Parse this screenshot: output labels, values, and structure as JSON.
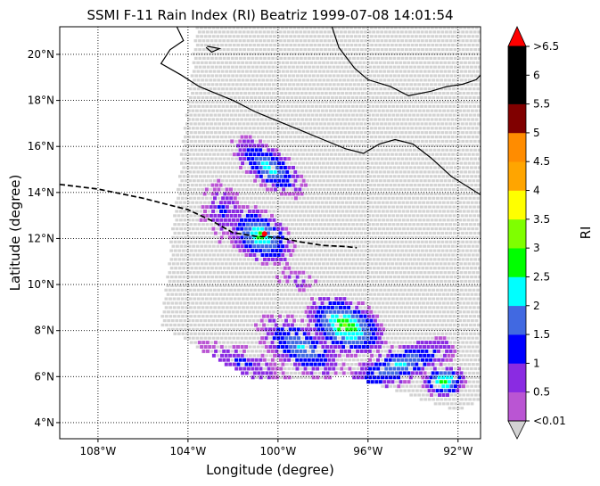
{
  "chart_data": {
    "type": "heatmap",
    "title": "SSMI F-11 Rain Index (RI) Beatriz 1999-07-08 14:01:54",
    "xlabel": "Longitude (degree)",
    "ylabel": "Latitude (degree)",
    "xlim": [
      -109.7,
      -91.0
    ],
    "ylim": [
      3.3,
      21.2
    ],
    "x_ticks": [
      {
        "value": -108,
        "label": "108°W"
      },
      {
        "value": -104,
        "label": "104°W"
      },
      {
        "value": -100,
        "label": "100°W"
      },
      {
        "value": -96,
        "label": "96°W"
      },
      {
        "value": -92,
        "label": "92°W"
      }
    ],
    "y_ticks": [
      {
        "value": 4,
        "label": "4°N"
      },
      {
        "value": 6,
        "label": "6°N"
      },
      {
        "value": 8,
        "label": "8°N"
      },
      {
        "value": 10,
        "label": "10°N"
      },
      {
        "value": 12,
        "label": "12°N"
      },
      {
        "value": 14,
        "label": "14°N"
      },
      {
        "value": 16,
        "label": "16°N"
      },
      {
        "value": 18,
        "label": "18°N"
      },
      {
        "value": 20,
        "label": "20°N"
      }
    ],
    "grid": true,
    "grid_style": "dotted",
    "swath_corners": [
      [
        -98.5,
        21.2
      ],
      [
        -91.0,
        21.2
      ],
      [
        -91.0,
        5.0
      ],
      [
        -92.0,
        4.5
      ],
      [
        -96.8,
        6.0
      ],
      [
        -101.0,
        5.8
      ],
      [
        -103.5,
        7.2
      ],
      [
        -105.2,
        8.2
      ],
      [
        -103.6,
        21.2
      ]
    ],
    "swath_color": "#d3d3d3",
    "track": {
      "style": "dashed",
      "color": "#000000",
      "points": [
        [
          -109.7,
          14.35
        ],
        [
          -108.0,
          14.15
        ],
        [
          -106.0,
          13.75
        ],
        [
          -104.0,
          13.25
        ],
        [
          -103.0,
          12.8
        ],
        [
          -102.0,
          12.25
        ],
        [
          -101.0,
          12.1
        ],
        [
          -100.0,
          12.05
        ],
        [
          -99.0,
          11.85
        ],
        [
          -98.0,
          11.7
        ],
        [
          -97.0,
          11.65
        ],
        [
          -96.5,
          11.6
        ]
      ]
    },
    "storm_center": {
      "lon": -100.6,
      "lat": 12.2,
      "color": "#ff0000"
    },
    "coastline": [
      [
        [
          -104.5,
          21.2
        ],
        [
          -104.2,
          20.6
        ],
        [
          -104.8,
          20.2
        ],
        [
          -105.2,
          19.6
        ],
        [
          -104.3,
          19.1
        ],
        [
          -103.5,
          18.6
        ],
        [
          -102.0,
          18.0
        ],
        [
          -101.0,
          17.5
        ],
        [
          -100.0,
          17.1
        ],
        [
          -99.0,
          16.7
        ],
        [
          -98.0,
          16.3
        ],
        [
          -97.0,
          15.9
        ],
        [
          -96.2,
          15.7
        ],
        [
          -95.5,
          16.1
        ],
        [
          -94.8,
          16.3
        ],
        [
          -94.0,
          16.1
        ],
        [
          -93.2,
          15.5
        ],
        [
          -92.3,
          14.7
        ],
        [
          -91.0,
          13.9
        ]
      ],
      [
        [
          -97.6,
          21.2
        ],
        [
          -97.3,
          20.3
        ],
        [
          -96.6,
          19.4
        ],
        [
          -96.0,
          18.9
        ],
        [
          -95.0,
          18.6
        ],
        [
          -94.2,
          18.2
        ],
        [
          -93.2,
          18.4
        ],
        [
          -92.5,
          18.6
        ],
        [
          -91.8,
          18.7
        ],
        [
          -91.2,
          18.9
        ],
        [
          -91.0,
          19.1
        ]
      ],
      [
        [
          -103.15,
          20.35
        ],
        [
          -102.6,
          20.25
        ],
        [
          -102.95,
          20.1
        ],
        [
          -103.2,
          20.3
        ]
      ]
    ],
    "colorbar": {
      "label": "RI",
      "tick_labels": [
        "<0.01",
        "0.5",
        "1",
        "1.5",
        "2",
        "2.5",
        "3",
        "3.5",
        "4",
        "4.5",
        "5",
        "5.5",
        "6",
        ">6.5"
      ],
      "colors": [
        "#ba55d3",
        "#8a2be2",
        "#0000ff",
        "#4169e1",
        "#00ffff",
        "#00ff00",
        "#7fff00",
        "#ffff00",
        "#ffa500",
        "#ff8c00",
        "#800000",
        "#000000",
        "#000000"
      ],
      "under_color": "#d3d3d3",
      "over_color": "#ff0000"
    },
    "rain_clusters": [
      {
        "lon": -100.4,
        "lat": 15.1,
        "rx": 1.6,
        "ry": 0.7,
        "rot": -35,
        "peak": 2.4
      },
      {
        "lon": -100.8,
        "lat": 12.1,
        "rx": 1.4,
        "ry": 0.9,
        "rot": -35,
        "peak": 2.8
      },
      {
        "lon": -102.5,
        "lat": 13.2,
        "rx": 0.8,
        "ry": 1.1,
        "rot": 0,
        "peak": 1.2
      },
      {
        "lon": -99.2,
        "lat": 10.2,
        "rx": 0.8,
        "ry": 0.4,
        "rot": -20,
        "peak": 0.9
      },
      {
        "lon": -97.0,
        "lat": 8.2,
        "rx": 1.6,
        "ry": 1.0,
        "rot": -25,
        "peak": 3.2
      },
      {
        "lon": -99.0,
        "lat": 7.3,
        "rx": 1.8,
        "ry": 0.9,
        "rot": -30,
        "peak": 2.2
      },
      {
        "lon": -101.6,
        "lat": 6.6,
        "rx": 1.8,
        "ry": 0.6,
        "rot": -20,
        "peak": 1.3
      },
      {
        "lon": -94.6,
        "lat": 6.5,
        "rx": 2.4,
        "ry": 0.7,
        "rot": 20,
        "peak": 2.2
      },
      {
        "lon": -92.6,
        "lat": 5.8,
        "rx": 0.8,
        "ry": 0.6,
        "rot": 0,
        "peak": 3.1
      }
    ]
  }
}
